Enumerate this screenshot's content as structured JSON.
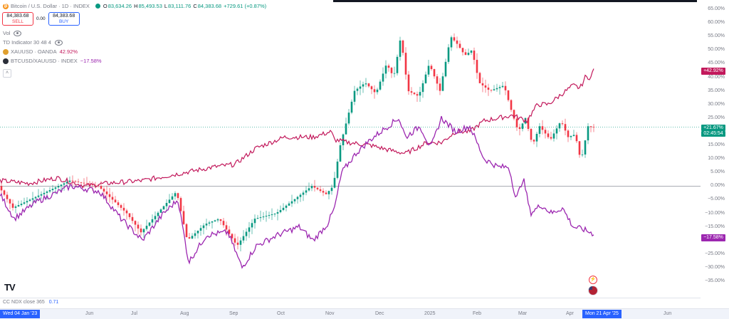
{
  "legend": {
    "symbol_line": "Bitcoin / U.S. Dollar · 1D · INDEX",
    "ohlc": {
      "o_key": "O",
      "o_val": "83,634.26",
      "h_key": "H",
      "h_val": "85,493.53",
      "l_key": "L",
      "l_val": "83,111.76",
      "c_key": "C",
      "c_val": "84,383.68",
      "change": "+729.61 (+0.87%)"
    },
    "sell": {
      "price": "84,383.68",
      "label": "SELL"
    },
    "spread": "0.00",
    "buy": {
      "price": "84,383.68",
      "label": "BUY"
    },
    "vol": "Vol",
    "td_indicator": "TD Indicator 30 48 4",
    "xauusd": {
      "name": "XAUUSD · OANDA",
      "value": "42.92%"
    },
    "btcxau": {
      "name": "BTCUSD/XAUUSD · INDEX",
      "value": "−17.58%"
    }
  },
  "indicator_pane": {
    "name": "CC NDX close 365",
    "value": "0.71"
  },
  "price_axis": {
    "ticks": [
      "65.00%",
      "60.00%",
      "55.00%",
      "50.00%",
      "45.00%",
      "40.00%",
      "35.00%",
      "30.00%",
      "25.00%",
      "20.00%",
      "15.00%",
      "10.00%",
      "5.00%",
      "0.00%",
      "−5.00%",
      "−10.00%",
      "−15.00%",
      "−20.00%",
      "−25.00%",
      "−30.00%",
      "−35.00%"
    ],
    "tag_xau": "+42.92%",
    "tag_btc_pct": "+21.67%",
    "tag_btc_time": "02:45:54",
    "tag_btcxau": "−17.58%"
  },
  "time_axis": {
    "start_tag": "Wed 04 Jan '23",
    "ticks": [
      "Jun",
      "Jul",
      "Aug",
      "Sep",
      "Oct",
      "Nov",
      "Dec",
      "2025",
      "Feb",
      "Mar",
      "Apr",
      "Jun"
    ],
    "end_tag": "Mon 21 Apr '25"
  },
  "icons": {
    "bitcoin": "bitcoin-icon",
    "live": "live-status-icon",
    "visibility": "eye-icon",
    "gold": "xauusd-icon",
    "ratio": "btcxau-icon",
    "collapse": "chevron-up-icon",
    "logo": "tradingview-logo",
    "event_flash": "lightning-event-icon",
    "event_flag": "us-flag-event-icon"
  },
  "colors": {
    "up": "#089981",
    "down": "#f23645",
    "xau_line": "#c2185b",
    "btcxau_line": "#9c27b0",
    "accent": "#2962ff"
  }
}
